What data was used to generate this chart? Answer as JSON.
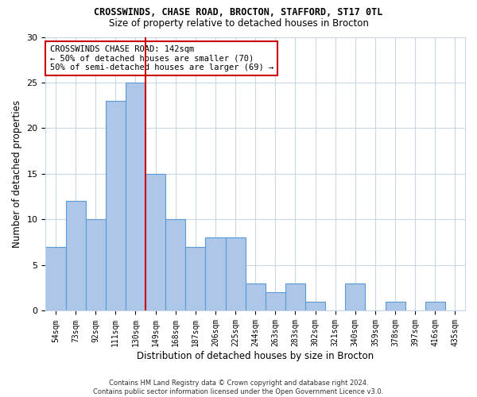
{
  "title1": "CROSSWINDS, CHASE ROAD, BROCTON, STAFFORD, ST17 0TL",
  "title2": "Size of property relative to detached houses in Brocton",
  "xlabel": "Distribution of detached houses by size in Brocton",
  "ylabel": "Number of detached properties",
  "categories": [
    "54sqm",
    "73sqm",
    "92sqm",
    "111sqm",
    "130sqm",
    "149sqm",
    "168sqm",
    "187sqm",
    "206sqm",
    "225sqm",
    "244sqm",
    "263sqm",
    "283sqm",
    "302sqm",
    "321sqm",
    "340sqm",
    "359sqm",
    "378sqm",
    "397sqm",
    "416sqm",
    "435sqm"
  ],
  "values": [
    7,
    12,
    10,
    23,
    25,
    15,
    10,
    7,
    8,
    8,
    3,
    2,
    3,
    1,
    0,
    3,
    0,
    1,
    0,
    1,
    0
  ],
  "bar_color": "#aec6e8",
  "bar_edge_color": "#5b9bd5",
  "vline_x": 4.5,
  "vline_color": "#cc0000",
  "annotation_text": "CROSSWINDS CHASE ROAD: 142sqm\n← 50% of detached houses are smaller (70)\n50% of semi-detached houses are larger (69) →",
  "annotation_box_edgecolor": "#cc0000",
  "footnote": "Contains HM Land Registry data © Crown copyright and database right 2024.\nContains public sector information licensed under the Open Government Licence v3.0.",
  "ylim": [
    0,
    30
  ],
  "yticks": [
    0,
    5,
    10,
    15,
    20,
    25,
    30
  ],
  "background_color": "#ffffff",
  "grid_color": "#c8d8e8"
}
